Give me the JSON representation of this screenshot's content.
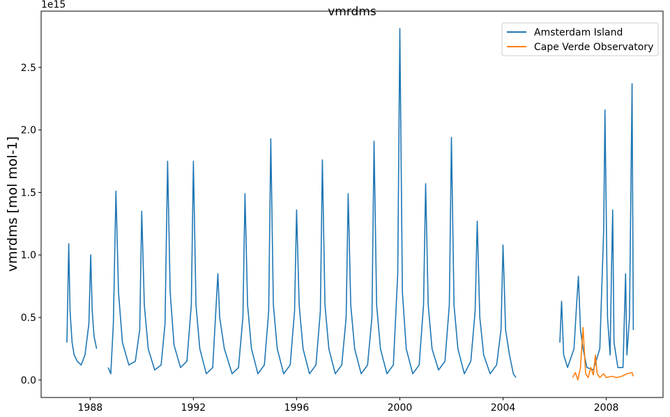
{
  "chart_data": {
    "type": "line",
    "title": "vmrdms",
    "xlabel": "",
    "ylabel": "vmrdms [mol mol-1]",
    "y_offset_label": "1e15",
    "xlim": [
      1986.1,
      2010.2
    ],
    "ylim": [
      -0.14,
      2.95
    ],
    "x_ticks": [
      1988,
      1992,
      1996,
      2000,
      2004,
      2008
    ],
    "x_tick_labels": [
      "1988",
      "1992",
      "1996",
      "2000",
      "2004",
      "2008"
    ],
    "y_ticks": [
      0.0,
      0.5,
      1.0,
      1.5,
      2.0,
      2.5
    ],
    "y_tick_labels": [
      "0.0",
      "0.5",
      "1.0",
      "1.5",
      "2.0",
      "2.5"
    ],
    "grid": false,
    "legend_position": "top-right",
    "series": [
      {
        "name": "Amsterdam Island",
        "color": "#1f77b4",
        "segments": [
          [
            [
              1987.1,
              0.3
            ],
            [
              1987.17,
              1.09
            ],
            [
              1987.22,
              0.55
            ],
            [
              1987.3,
              0.3
            ],
            [
              1987.38,
              0.2
            ],
            [
              1987.5,
              0.15
            ],
            [
              1987.65,
              0.12
            ],
            [
              1987.8,
              0.2
            ],
            [
              1987.95,
              0.45
            ],
            [
              1988.02,
              1.0
            ],
            [
              1988.08,
              0.55
            ],
            [
              1988.15,
              0.35
            ],
            [
              1988.25,
              0.25
            ]
          ],
          [
            [
              1988.7,
              0.1
            ],
            [
              1988.8,
              0.05
            ],
            [
              1988.9,
              0.45
            ],
            [
              1989.0,
              1.51
            ],
            [
              1989.1,
              0.7
            ],
            [
              1989.25,
              0.3
            ],
            [
              1989.5,
              0.12
            ],
            [
              1989.75,
              0.15
            ],
            [
              1989.92,
              0.4
            ],
            [
              1990.0,
              1.35
            ],
            [
              1990.1,
              0.6
            ],
            [
              1990.25,
              0.25
            ],
            [
              1990.5,
              0.08
            ],
            [
              1990.75,
              0.12
            ],
            [
              1990.9,
              0.45
            ],
            [
              1991.0,
              1.75
            ],
            [
              1991.1,
              0.7
            ],
            [
              1991.25,
              0.28
            ],
            [
              1991.5,
              0.1
            ],
            [
              1991.75,
              0.15
            ],
            [
              1991.92,
              0.6
            ],
            [
              1992.0,
              1.75
            ],
            [
              1992.1,
              0.6
            ],
            [
              1992.25,
              0.25
            ],
            [
              1992.5,
              0.05
            ],
            [
              1992.75,
              0.1
            ],
            [
              1992.95,
              0.85
            ],
            [
              1993.02,
              0.5
            ],
            [
              1993.2,
              0.25
            ],
            [
              1993.5,
              0.05
            ],
            [
              1993.75,
              0.1
            ],
            [
              1993.92,
              0.5
            ],
            [
              1994.0,
              1.49
            ],
            [
              1994.1,
              0.6
            ],
            [
              1994.25,
              0.25
            ],
            [
              1994.5,
              0.05
            ],
            [
              1994.75,
              0.12
            ],
            [
              1994.92,
              0.55
            ],
            [
              1995.0,
              1.93
            ],
            [
              1995.1,
              0.6
            ],
            [
              1995.25,
              0.25
            ],
            [
              1995.5,
              0.05
            ],
            [
              1995.75,
              0.12
            ],
            [
              1995.92,
              0.55
            ],
            [
              1996.0,
              1.36
            ],
            [
              1996.1,
              0.6
            ],
            [
              1996.25,
              0.25
            ],
            [
              1996.5,
              0.05
            ],
            [
              1996.75,
              0.12
            ],
            [
              1996.92,
              0.55
            ],
            [
              1997.0,
              1.76
            ],
            [
              1997.1,
              0.6
            ],
            [
              1997.25,
              0.25
            ],
            [
              1997.5,
              0.05
            ],
            [
              1997.75,
              0.12
            ],
            [
              1997.92,
              0.5
            ],
            [
              1998.0,
              1.49
            ],
            [
              1998.1,
              0.6
            ],
            [
              1998.25,
              0.25
            ],
            [
              1998.5,
              0.05
            ],
            [
              1998.75,
              0.12
            ],
            [
              1998.92,
              0.5
            ],
            [
              1999.0,
              1.91
            ],
            [
              1999.1,
              0.6
            ],
            [
              1999.25,
              0.25
            ],
            [
              1999.5,
              0.05
            ],
            [
              1999.75,
              0.12
            ],
            [
              1999.92,
              0.85
            ],
            [
              2000.0,
              2.81
            ],
            [
              2000.1,
              0.7
            ],
            [
              2000.25,
              0.25
            ],
            [
              2000.5,
              0.05
            ],
            [
              2000.75,
              0.12
            ],
            [
              2000.92,
              0.6
            ],
            [
              2001.0,
              1.57
            ],
            [
              2001.1,
              0.6
            ],
            [
              2001.25,
              0.25
            ],
            [
              2001.5,
              0.08
            ],
            [
              2001.75,
              0.15
            ],
            [
              2001.92,
              0.6
            ],
            [
              2002.0,
              1.94
            ],
            [
              2002.1,
              0.6
            ],
            [
              2002.25,
              0.25
            ],
            [
              2002.5,
              0.05
            ],
            [
              2002.75,
              0.15
            ],
            [
              2002.92,
              0.55
            ],
            [
              2003.0,
              1.27
            ],
            [
              2003.1,
              0.5
            ],
            [
              2003.25,
              0.2
            ],
            [
              2003.5,
              0.05
            ],
            [
              2003.75,
              0.12
            ],
            [
              2003.92,
              0.4
            ],
            [
              2004.0,
              1.08
            ],
            [
              2004.1,
              0.4
            ],
            [
              2004.25,
              0.2
            ],
            [
              2004.4,
              0.05
            ],
            [
              2004.5,
              0.02
            ]
          ],
          [
            [
              2006.2,
              0.3
            ],
            [
              2006.27,
              0.63
            ],
            [
              2006.35,
              0.2
            ],
            [
              2006.5,
              0.1
            ],
            [
              2006.75,
              0.25
            ],
            [
              2006.85,
              0.6
            ],
            [
              2006.92,
              0.83
            ],
            [
              2007.0,
              0.4
            ],
            [
              2007.1,
              0.25
            ],
            [
              2007.25,
              0.1
            ],
            [
              2007.5,
              0.08
            ],
            [
              2007.75,
              0.25
            ],
            [
              2007.9,
              1.2
            ],
            [
              2007.95,
              2.16
            ],
            [
              2008.05,
              0.5
            ],
            [
              2008.15,
              0.2
            ],
            [
              2008.2,
              0.85
            ],
            [
              2008.25,
              1.36
            ],
            [
              2008.3,
              0.3
            ],
            [
              2008.45,
              0.1
            ],
            [
              2008.65,
              0.1
            ],
            [
              2008.75,
              0.85
            ],
            [
              2008.8,
              0.2
            ],
            [
              2008.9,
              0.5
            ],
            [
              2009.0,
              2.37
            ],
            [
              2009.05,
              0.4
            ]
          ]
        ]
      },
      {
        "name": "Cape Verde Observatory",
        "color": "#ff7f0e",
        "segments": [
          [
            [
              2006.7,
              0.02
            ],
            [
              2006.8,
              0.06
            ],
            [
              2006.9,
              0.0
            ],
            [
              2007.0,
              0.1
            ],
            [
              2007.1,
              0.42
            ],
            [
              2007.2,
              0.05
            ],
            [
              2007.3,
              0.02
            ],
            [
              2007.4,
              0.1
            ],
            [
              2007.5,
              0.04
            ],
            [
              2007.58,
              0.2
            ],
            [
              2007.65,
              0.05
            ],
            [
              2007.75,
              0.02
            ],
            [
              2007.9,
              0.05
            ],
            [
              2008.0,
              0.02
            ],
            [
              2008.2,
              0.03
            ],
            [
              2008.4,
              0.02
            ],
            [
              2008.6,
              0.03
            ],
            [
              2008.8,
              0.05
            ],
            [
              2009.0,
              0.06
            ],
            [
              2009.05,
              0.03
            ]
          ]
        ]
      }
    ]
  }
}
